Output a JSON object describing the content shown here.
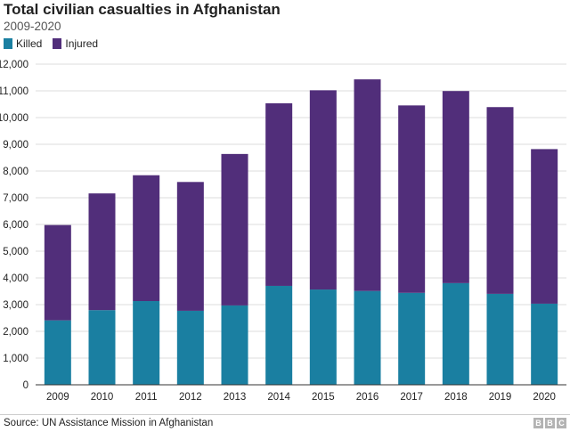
{
  "chart_data": {
    "type": "bar",
    "stacked": true,
    "title": "Total civilian casualties in Afghanistan",
    "subtitle": "2009-2020",
    "categories": [
      "2009",
      "2010",
      "2011",
      "2012",
      "2013",
      "2014",
      "2015",
      "2016",
      "2017",
      "2018",
      "2019",
      "2020"
    ],
    "series": [
      {
        "name": "Killed",
        "color": "#1a7fa1",
        "values": [
          2412,
          2794,
          3133,
          2769,
          2969,
          3701,
          3565,
          3510,
          3440,
          3804,
          3403,
          3035
        ]
      },
      {
        "name": "Injured",
        "color": "#512e7a",
        "values": [
          3566,
          4368,
          4709,
          4821,
          5669,
          6834,
          7457,
          7920,
          7015,
          7189,
          6989,
          5785
        ]
      }
    ],
    "ylim": [
      0,
      12000
    ],
    "yticks": [
      "0",
      "1,000",
      "2,000",
      "3,000",
      "4,000",
      "5,000",
      "6,000",
      "7,000",
      "8,000",
      "9,000",
      "10,000",
      "11,000",
      "12,000"
    ],
    "ytick_values": [
      0,
      1000,
      2000,
      3000,
      4000,
      5000,
      6000,
      7000,
      8000,
      9000,
      10000,
      11000,
      12000
    ],
    "grid": true,
    "legend": "top-left"
  },
  "legend": {
    "killed": "Killed",
    "injured": "Injured"
  },
  "footer": {
    "source": "Source: UN Assistance Mission in Afghanistan",
    "logo": [
      "B",
      "B",
      "C"
    ]
  }
}
